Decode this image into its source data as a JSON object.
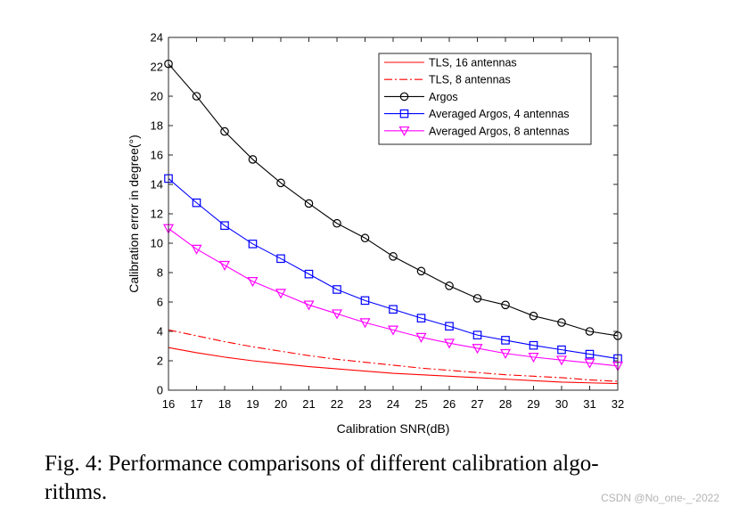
{
  "chart_data": {
    "type": "line",
    "xlabel": "Calibration SNR(dB)",
    "ylabel": "Calibration error in degree(°)",
    "xlim": [
      16,
      32
    ],
    "ylim": [
      0,
      24
    ],
    "x_ticks": [
      16,
      17,
      18,
      19,
      20,
      21,
      22,
      23,
      24,
      25,
      26,
      27,
      28,
      29,
      30,
      31,
      32
    ],
    "y_ticks": [
      0,
      2,
      4,
      6,
      8,
      10,
      12,
      14,
      16,
      18,
      20,
      22,
      24
    ],
    "grid": false,
    "legend_position": "top-right",
    "x": [
      16,
      17,
      18,
      19,
      20,
      21,
      22,
      23,
      24,
      25,
      26,
      27,
      28,
      29,
      30,
      31,
      32
    ],
    "series": [
      {
        "name": "TLS, 16 antennas",
        "color": "#ff0000",
        "line": "solid",
        "marker": "none",
        "values": [
          2.9,
          2.55,
          2.25,
          2.0,
          1.8,
          1.6,
          1.45,
          1.3,
          1.15,
          1.05,
          0.95,
          0.85,
          0.75,
          0.65,
          0.55,
          0.5,
          0.45
        ]
      },
      {
        "name": "TLS, 8 antennas",
        "color": "#ff0000",
        "line": "dashdot",
        "marker": "none",
        "values": [
          4.1,
          3.7,
          3.3,
          2.95,
          2.65,
          2.35,
          2.1,
          1.9,
          1.7,
          1.5,
          1.35,
          1.2,
          1.05,
          0.95,
          0.85,
          0.7,
          0.6
        ]
      },
      {
        "name": "Argos",
        "color": "#000000",
        "line": "solid",
        "marker": "circle",
        "values": [
          22.2,
          20.0,
          17.6,
          15.7,
          14.1,
          12.7,
          11.35,
          10.35,
          9.1,
          8.1,
          7.1,
          6.25,
          5.8,
          5.05,
          4.6,
          4.0,
          3.7
        ]
      },
      {
        "name": "Averaged Argos, 4 antennas",
        "color": "#0000ff",
        "line": "solid",
        "marker": "square",
        "values": [
          14.4,
          12.75,
          11.2,
          9.95,
          8.95,
          7.9,
          6.85,
          6.1,
          5.5,
          4.9,
          4.35,
          3.75,
          3.4,
          3.05,
          2.75,
          2.45,
          2.15
        ]
      },
      {
        "name": "Averaged Argos, 8 antennas",
        "color": "#ff00ff",
        "line": "solid",
        "marker": "triangle-down",
        "values": [
          11.0,
          9.6,
          8.5,
          7.4,
          6.6,
          5.8,
          5.2,
          4.6,
          4.1,
          3.6,
          3.2,
          2.85,
          2.5,
          2.25,
          2.05,
          1.85,
          1.65
        ]
      }
    ]
  },
  "caption": {
    "text": "Fig. 4: Performance comparisons of different calibration algo-rithms.",
    "line1": "Fig. 4: Performance comparisons of different calibration algo-",
    "line2": "rithms."
  },
  "watermark": "CSDN @No_one-_-2022"
}
